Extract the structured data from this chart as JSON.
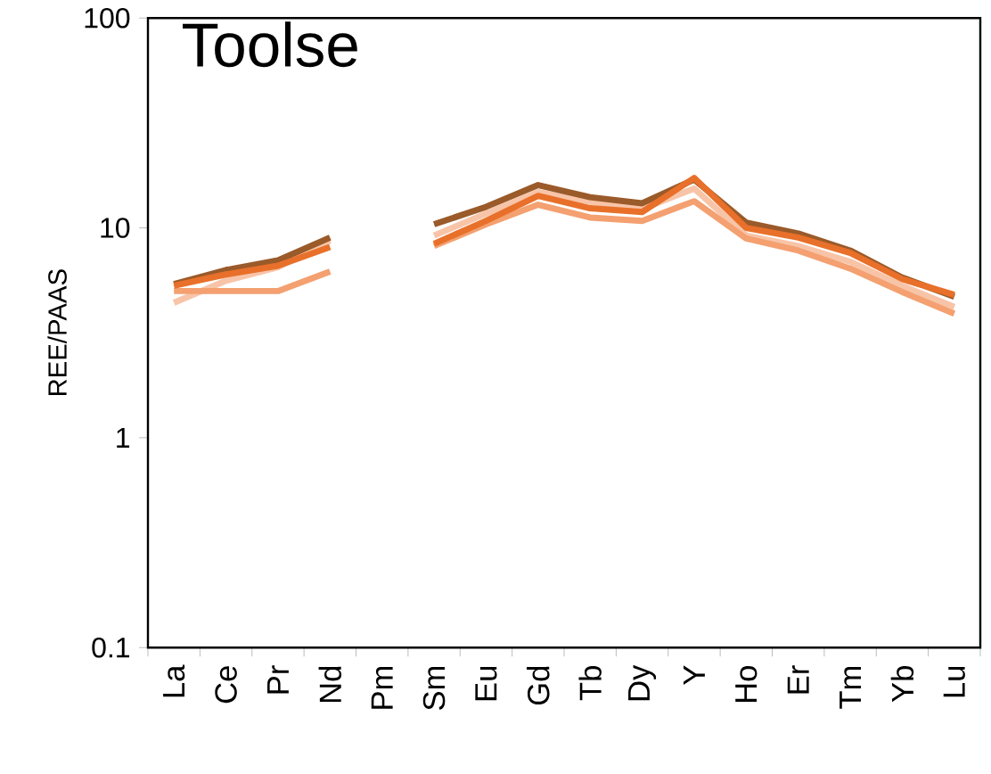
{
  "chart_data": {
    "type": "line",
    "title": "Toolse",
    "ylabel": "REE/PAAS",
    "categories": [
      "La",
      "Ce",
      "Pr",
      "Nd",
      "Pm",
      "Sm",
      "Eu",
      "Gd",
      "Tb",
      "Dy",
      "Y",
      "Ho",
      "Er",
      "Tm",
      "Yb",
      "Lu"
    ],
    "series": [
      {
        "color": "#f8c4a8",
        "values": [
          4.4,
          5.6,
          6.5,
          8.7,
          null,
          9.2,
          11.7,
          14.8,
          13.3,
          12.3,
          15.4,
          9.2,
          8.2,
          6.9,
          5.3,
          4.2
        ]
      },
      {
        "color": "#f4a070",
        "values": [
          5.0,
          5.0,
          5.0,
          6.2,
          null,
          8.2,
          10.4,
          12.9,
          11.2,
          10.8,
          13.4,
          8.9,
          7.8,
          6.4,
          4.95,
          3.9
        ]
      },
      {
        "color": "#9a5a2a",
        "values": [
          5.4,
          6.3,
          7.0,
          9.0,
          null,
          10.4,
          12.6,
          16,
          14,
          13.1,
          17,
          10.6,
          9.4,
          7.8,
          5.8,
          4.7
        ]
      },
      {
        "color": "#e8702a",
        "values": [
          5.3,
          6.0,
          6.6,
          8.1,
          null,
          8.4,
          10.8,
          14.2,
          12.4,
          11.9,
          17.3,
          10,
          9.0,
          7.6,
          5.7,
          4.8
        ]
      }
    ],
    "log": true,
    "ylim": [
      0.1,
      100
    ],
    "yticks": [
      0.1,
      1,
      10,
      100
    ],
    "grid": false,
    "line_style": "solid"
  }
}
